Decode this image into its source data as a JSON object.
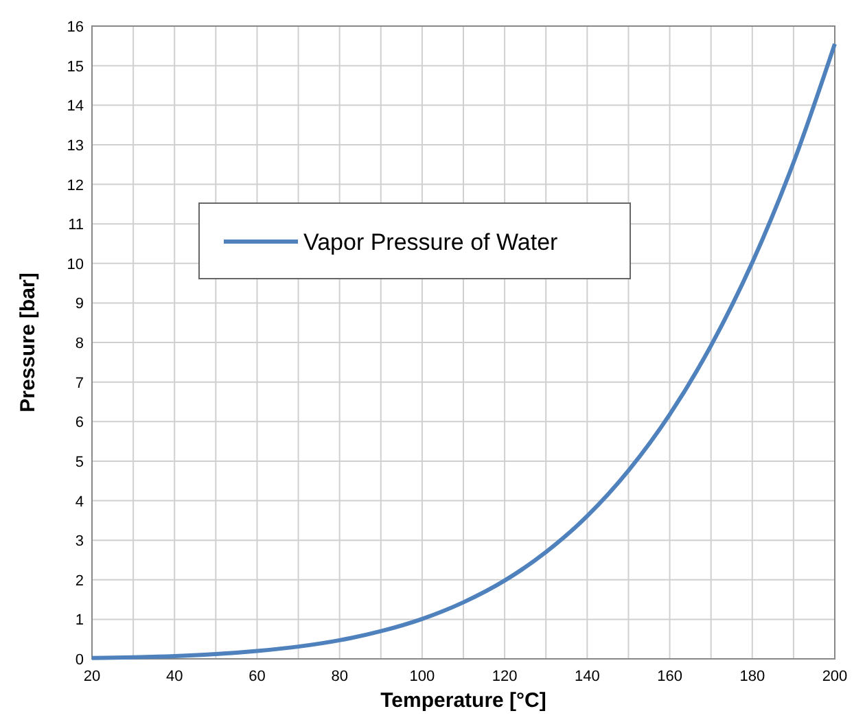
{
  "chart_data": {
    "type": "line",
    "xlabel": "Temperature [°C]",
    "ylabel": "Pressure [bar]",
    "x": [
      20,
      30,
      40,
      50,
      60,
      70,
      80,
      90,
      100,
      110,
      120,
      130,
      140,
      150,
      160,
      170,
      180,
      190,
      200
    ],
    "series": [
      {
        "name": "Vapor Pressure of Water",
        "color": "#4f81bd",
        "values": [
          0.02,
          0.04,
          0.07,
          0.12,
          0.2,
          0.31,
          0.47,
          0.7,
          1.01,
          1.43,
          1.98,
          2.7,
          3.61,
          4.76,
          6.18,
          7.92,
          10.02,
          12.55,
          15.55
        ]
      }
    ],
    "xlim": [
      20,
      200
    ],
    "xticks": [
      20,
      {
        "value": 30,
        "label": null
      },
      40,
      {
        "value": 50,
        "label": null
      },
      60,
      {
        "value": 70,
        "label": null
      },
      80,
      {
        "value": 90,
        "label": null
      },
      100,
      {
        "value": 110,
        "label": null
      },
      120,
      {
        "value": 130,
        "label": null
      },
      140,
      {
        "value": 150,
        "label": null
      },
      160,
      {
        "value": 170,
        "label": null
      },
      180,
      {
        "value": 190,
        "label": null
      },
      200
    ],
    "ylim": [
      0,
      16
    ],
    "yticks": [
      0,
      1,
      2,
      3,
      4,
      5,
      6,
      7,
      8,
      9,
      10,
      11,
      12,
      13,
      14,
      15,
      16
    ],
    "grid": true,
    "legend": "top left",
    "marker": "none",
    "line_style": "solid"
  }
}
